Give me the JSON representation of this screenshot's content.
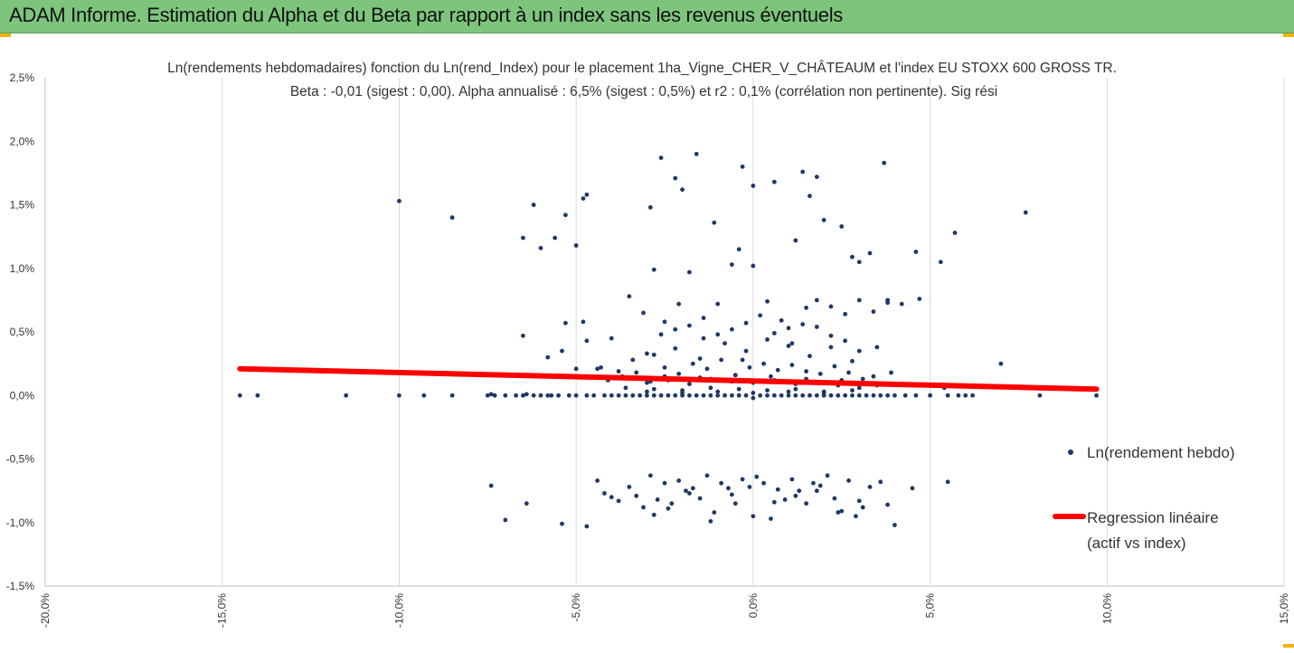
{
  "header": {
    "title": "ADAM Informe. Estimation du Alpha et du Beta par rapport à un index sans les revenus éventuels"
  },
  "colors": {
    "banner": "#7dc57d",
    "points": "#1f3864",
    "regression": "#ff0000",
    "grid": "#d9d9d9"
  },
  "chart_data": {
    "type": "scatter",
    "title_lines": [
      "Ln(rendements hebdomadaires) fonction du Ln(rend_Index) pour le placement 1ha_Vigne_CHER_V_CHÂTEAUM et l'index EU STOXX 600 GROSS TR.",
      "Beta : -0,01 (sigest : 0,00). Alpha annualisé : 6,5% (sigest : 0,5%) et r2 : 0,1% (corrélation non pertinente). Sig rési"
    ],
    "xlim": [
      -0.2,
      0.15
    ],
    "ylim": [
      -0.015,
      0.025
    ],
    "x_ticks": [
      "-20,0%",
      "-15,0%",
      "-10,0%",
      "-5,0%",
      "0,0%",
      "5,0%",
      "10,0%",
      "15,0%"
    ],
    "y_ticks": [
      "2,5%",
      "2,0%",
      "1,5%",
      "1,0%",
      "0,5%",
      "0,0%",
      "-0,5%",
      "-1,0%",
      "-1,5%"
    ],
    "grid": "vertical",
    "legend_position": "right",
    "series": [
      {
        "name": "Ln(rendement hebdo)",
        "kind": "points",
        "x": [
          -0.145,
          -0.14,
          -0.115,
          -0.1,
          -0.093,
          -0.085,
          -0.075,
          -0.073,
          -0.07,
          -0.067,
          -0.065,
          -0.062,
          -0.06,
          -0.058,
          -0.057,
          -0.055,
          -0.052,
          -0.05,
          -0.047,
          -0.045,
          -0.042,
          -0.04,
          -0.038,
          -0.036,
          -0.034,
          -0.032,
          -0.03,
          -0.028,
          -0.026,
          -0.024,
          -0.022,
          -0.02,
          -0.018,
          -0.016,
          -0.014,
          -0.012,
          -0.01,
          -0.008,
          -0.006,
          -0.004,
          -0.002,
          0.0,
          0.002,
          0.004,
          0.006,
          0.008,
          0.01,
          0.012,
          0.014,
          0.016,
          0.018,
          0.02,
          0.022,
          0.024,
          0.026,
          0.028,
          0.03,
          0.032,
          0.034,
          0.036,
          0.038,
          0.04,
          0.043,
          0.046,
          0.05,
          0.055,
          0.058,
          0.06,
          0.062,
          0.081,
          0.097,
          -0.1,
          -0.085,
          -0.065,
          -0.062,
          -0.056,
          -0.06,
          -0.053,
          -0.05,
          -0.048,
          -0.047,
          -0.026,
          -0.029,
          -0.022,
          -0.02,
          -0.016,
          -0.011,
          -0.004,
          -0.003,
          0.0,
          0.006,
          0.012,
          0.014,
          0.016,
          0.018,
          0.02,
          0.025,
          0.028,
          0.03,
          0.033,
          0.037,
          0.038,
          0.046,
          0.053,
          0.057,
          0.077,
          -0.065,
          -0.058,
          -0.053,
          -0.05,
          -0.048,
          -0.04,
          -0.035,
          -0.031,
          -0.028,
          -0.025,
          -0.021,
          -0.018,
          -0.014,
          -0.01,
          -0.006,
          -0.003,
          0.0,
          0.004,
          0.008,
          0.011,
          0.015,
          0.018,
          0.022,
          0.026,
          0.03,
          0.034,
          0.038,
          0.042,
          0.047,
          0.07,
          -0.074,
          -0.064,
          -0.054,
          -0.047,
          -0.043,
          -0.038,
          -0.034,
          -0.03,
          -0.026,
          -0.022,
          -0.018,
          -0.014,
          -0.01,
          -0.006,
          -0.002,
          0.002,
          0.006,
          0.01,
          0.014,
          0.018,
          0.022,
          0.026,
          0.03,
          0.035,
          0.039,
          0.054,
          -0.044,
          -0.041,
          -0.037,
          -0.033,
          -0.029,
          -0.025,
          -0.021,
          -0.017,
          -0.013,
          -0.009,
          -0.005,
          -0.001,
          0.003,
          0.007,
          0.011,
          0.015,
          0.019,
          0.023,
          0.027,
          0.031,
          0.035,
          -0.028,
          -0.022,
          -0.015,
          -0.008,
          -0.002,
          0.004,
          0.01,
          0.016,
          0.022,
          0.028,
          0.034,
          -0.03,
          -0.024,
          -0.018,
          -0.012,
          -0.006,
          0.0,
          0.006,
          0.012,
          0.018,
          0.024,
          0.03,
          -0.036,
          -0.028,
          -0.02,
          -0.012,
          -0.004,
          0.004,
          0.012,
          0.02,
          0.028,
          -0.03,
          -0.02,
          -0.01,
          0.0,
          0.01,
          0.02,
          -0.025,
          -0.015,
          -0.005,
          0.005,
          0.015,
          0.025
        ],
        "y": [
          0.0,
          0.0,
          0.0,
          0.0,
          0.0,
          0.0,
          0.0,
          0.0,
          0.0,
          0.0,
          0.0,
          0.0,
          0.0,
          0.0,
          0.0,
          0.0,
          0.0,
          0.0,
          0.0,
          0.0,
          0.0,
          0.0,
          0.0,
          0.0,
          0.0,
          0.0,
          0.0,
          0.0,
          0.0,
          0.0,
          0.0,
          0.0,
          0.0,
          0.0,
          0.0,
          0.0,
          0.0,
          0.0,
          0.0,
          0.0,
          0.0,
          -0.0002,
          0.0,
          0.0,
          0.0,
          0.0,
          0.0,
          0.0,
          0.0,
          0.0,
          0.0,
          0.0,
          0.0,
          0.0,
          0.0,
          0.0,
          0.0,
          0.0,
          0.0,
          0.0,
          0.0,
          0.0,
          0.0,
          0.0,
          0.0,
          0.0,
          0.0,
          0.0,
          0.0,
          0.0,
          0.0,
          0.0153,
          0.014,
          0.0124,
          0.015,
          0.0124,
          0.0116,
          0.0142,
          0.0118,
          0.0155,
          0.0158,
          0.0187,
          0.0148,
          0.0171,
          0.0162,
          0.019,
          0.0136,
          0.0115,
          0.018,
          0.0165,
          0.0168,
          0.0122,
          0.0176,
          0.0157,
          0.0172,
          0.0138,
          0.0133,
          0.0109,
          0.0105,
          0.0112,
          0.0183,
          0.0073,
          0.0113,
          0.0105,
          0.0128,
          0.0144,
          0.0047,
          0.003,
          0.0057,
          0.0021,
          0.0058,
          0.0045,
          0.0078,
          0.0065,
          0.0099,
          0.0058,
          0.0072,
          0.0097,
          0.0045,
          0.0072,
          0.0103,
          0.0028,
          0.0102,
          0.0074,
          0.0059,
          0.0041,
          0.0069,
          0.0075,
          0.007,
          0.0064,
          0.0075,
          0.0066,
          0.0075,
          0.0072,
          0.0076,
          0.0025,
          0.0001,
          0.0001,
          0.0035,
          0.0043,
          0.0022,
          0.0019,
          0.0028,
          0.0033,
          0.0048,
          0.0052,
          0.0055,
          0.0061,
          0.0048,
          0.0052,
          0.0057,
          0.0063,
          0.0049,
          0.0053,
          0.0056,
          0.0054,
          0.0047,
          0.0043,
          0.0035,
          0.0038,
          0.0018,
          0.0006,
          0.0021,
          0.0012,
          0.0015,
          0.0018,
          0.0011,
          0.0022,
          0.0017,
          0.0025,
          0.0021,
          0.0028,
          0.0016,
          0.0022,
          0.0025,
          0.002,
          0.0024,
          0.0019,
          0.0017,
          0.0023,
          0.0018,
          0.0013,
          0.0008,
          0.0032,
          0.0037,
          0.0029,
          0.0041,
          0.0035,
          0.0044,
          0.0039,
          0.0031,
          0.0038,
          0.0027,
          0.0015,
          0.001,
          0.0012,
          0.0009,
          0.0013,
          0.0011,
          0.001,
          0.0012,
          0.0009,
          0.001,
          0.0008,
          0.0006,
          0.0006,
          0.0005,
          0.0004,
          0.0006,
          0.0005,
          0.0004,
          0.0005,
          0.0003,
          0.0004,
          0.0003,
          0.0002,
          0.0003,
          0.0002,
          0.0003,
          0.0002,
          0.0015,
          0.0014,
          0.0016,
          0.0015,
          0.0013,
          0.0012
        ]
      },
      {
        "name": "Ln(rendement hebdo)",
        "kind": "points-negative",
        "x": [
          -0.074,
          -0.07,
          -0.064,
          -0.054,
          -0.047,
          -0.044,
          -0.042,
          -0.04,
          -0.038,
          -0.035,
          -0.033,
          -0.031,
          -0.029,
          -0.027,
          -0.025,
          -0.023,
          -0.021,
          -0.019,
          -0.017,
          -0.015,
          -0.013,
          -0.011,
          -0.009,
          -0.007,
          -0.005,
          -0.003,
          -0.001,
          0.001,
          0.003,
          0.005,
          0.007,
          0.009,
          0.011,
          0.013,
          0.015,
          0.017,
          0.019,
          0.021,
          0.023,
          0.025,
          0.027,
          0.029,
          0.031,
          0.033,
          0.036,
          0.038,
          0.04,
          0.045,
          0.055,
          -0.028,
          -0.024,
          -0.018,
          -0.012,
          -0.006,
          0.0,
          0.006,
          0.012,
          0.018,
          0.024,
          0.03
        ],
        "y": [
          -0.0071,
          -0.0098,
          -0.0085,
          -0.0101,
          -0.0103,
          -0.0067,
          -0.0077,
          -0.008,
          -0.0083,
          -0.0072,
          -0.0079,
          -0.0088,
          -0.0063,
          -0.0082,
          -0.0069,
          -0.0085,
          -0.0067,
          -0.0075,
          -0.0073,
          -0.0081,
          -0.0063,
          -0.0092,
          -0.0069,
          -0.0073,
          -0.0085,
          -0.0066,
          -0.0072,
          -0.0064,
          -0.0069,
          -0.0097,
          -0.0074,
          -0.0082,
          -0.0066,
          -0.0075,
          -0.0085,
          -0.0069,
          -0.0071,
          -0.0063,
          -0.0081,
          -0.0091,
          -0.0067,
          -0.0095,
          -0.0088,
          -0.0072,
          -0.0068,
          -0.0086,
          -0.0102,
          -0.0073,
          -0.0068,
          -0.0094,
          -0.0089,
          -0.0077,
          -0.0099,
          -0.0078,
          -0.0095,
          -0.0084,
          -0.0079,
          -0.0075,
          -0.0092,
          -0.0083
        ]
      },
      {
        "name": "Regression linéaire (actif vs index)",
        "kind": "line",
        "x": [
          -0.145,
          0.097
        ],
        "y": [
          0.0021,
          0.0005
        ]
      }
    ],
    "legend": [
      {
        "label": "Ln(rendement hebdo)",
        "marker": "dot"
      },
      {
        "label_lines": [
          "Regression linéaire",
          "(actif vs index)"
        ],
        "marker": "line"
      }
    ]
  }
}
